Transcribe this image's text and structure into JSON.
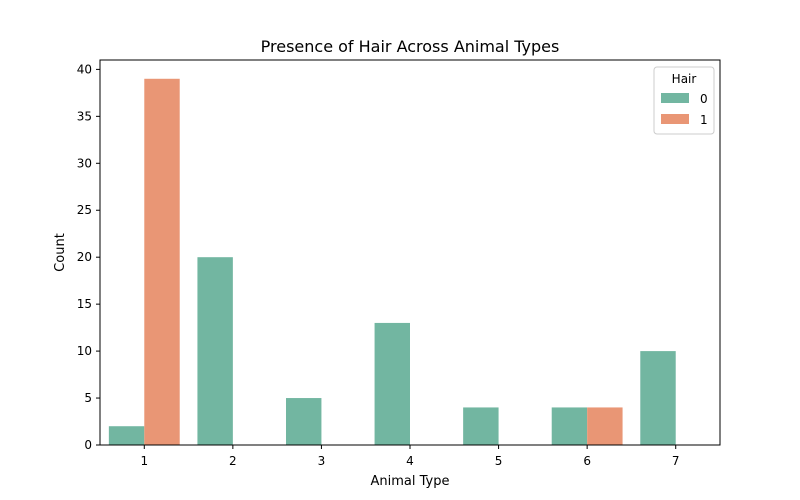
{
  "chart_data": {
    "type": "bar",
    "title": "Presence of Hair Across Animal Types",
    "xlabel": "Animal Type",
    "ylabel": "Count",
    "categories": [
      "1",
      "2",
      "3",
      "4",
      "5",
      "6",
      "7"
    ],
    "yticks": [
      0,
      5,
      10,
      15,
      20,
      25,
      30,
      35,
      40
    ],
    "ylim": [
      0,
      41
    ],
    "grid": false,
    "legend": {
      "title": "Hair",
      "placement": "top-right"
    },
    "series": [
      {
        "name": "0",
        "color": "#72b6a1",
        "values": [
          2,
          20,
          5,
          13,
          4,
          4,
          10
        ]
      },
      {
        "name": "1",
        "color": "#e99675",
        "values": [
          39,
          0,
          0,
          0,
          0,
          4,
          0
        ]
      }
    ]
  }
}
